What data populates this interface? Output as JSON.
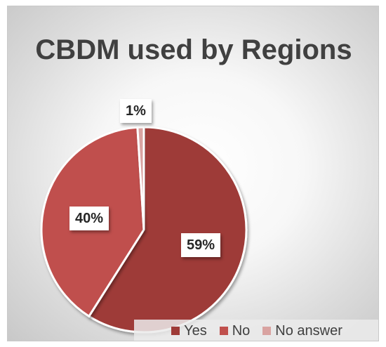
{
  "chart_data": {
    "type": "pie",
    "title": "CBDM used by Regions",
    "categories": [
      "Yes",
      "No",
      "No answer"
    ],
    "values": [
      59,
      40,
      1
    ],
    "labels": [
      "59%",
      "40%",
      "1%"
    ],
    "colors": [
      "#9e3a37",
      "#c0504d",
      "#d9a3a1"
    ],
    "legend_position": "bottom-right"
  }
}
